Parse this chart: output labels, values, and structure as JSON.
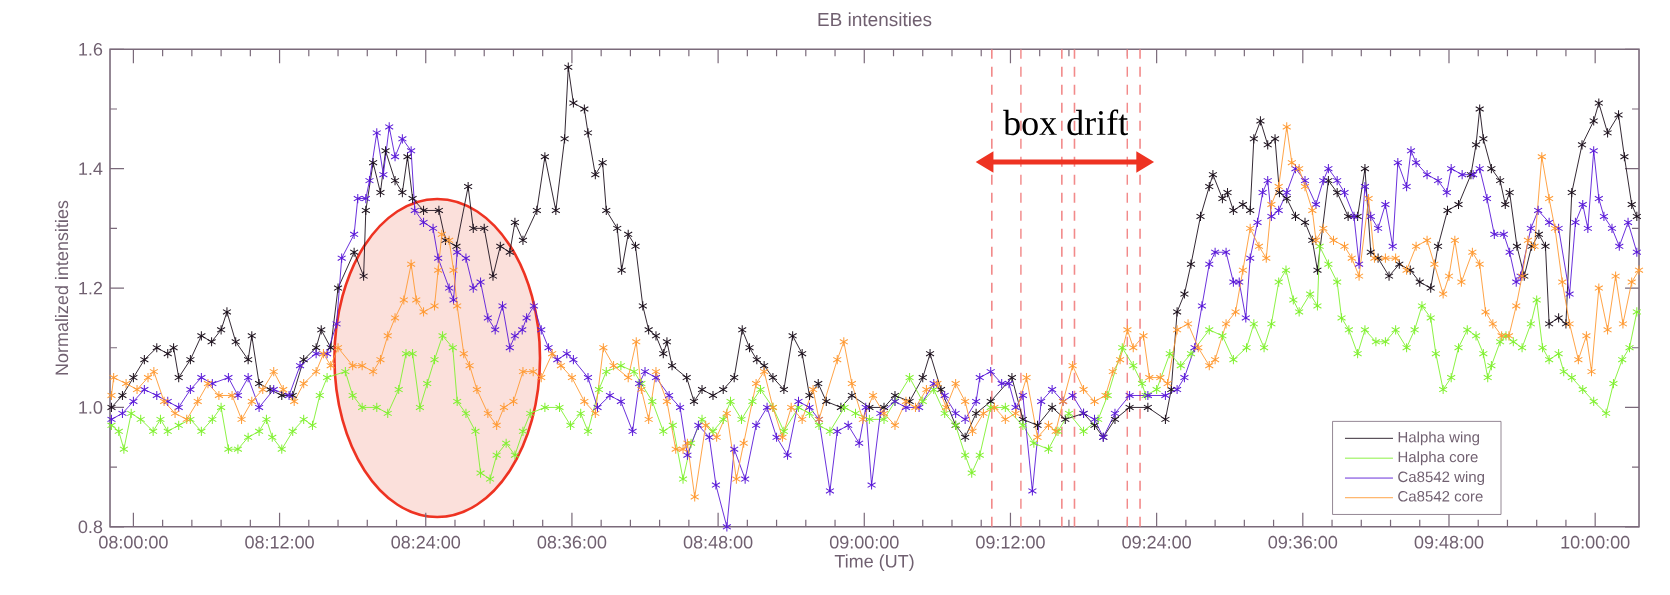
{
  "chart_data": {
    "type": "line",
    "title": "EB intensities",
    "xlabel": "Time (UT)",
    "ylabel": "Normalized intensities",
    "xlim": [
      7.968,
      10.06
    ],
    "ylim": [
      0.8,
      1.6
    ],
    "xticks": [
      {
        "value": 8.0,
        "label": "08:00:00"
      },
      {
        "value": 8.2,
        "label": "08:12:00"
      },
      {
        "value": 8.4,
        "label": "08:24:00"
      },
      {
        "value": 8.6,
        "label": "08:36:00"
      },
      {
        "value": 8.8,
        "label": "08:48:00"
      },
      {
        "value": 9.0,
        "label": "09:00:00"
      },
      {
        "value": 9.2,
        "label": "09:12:00"
      },
      {
        "value": 9.4,
        "label": "09:24:00"
      },
      {
        "value": 9.6,
        "label": "09:36:00"
      },
      {
        "value": 9.8,
        "label": "09:48:00"
      },
      {
        "value": 10.0,
        "label": "10:00:00"
      }
    ],
    "yticks": [
      {
        "value": 0.8,
        "label": "0.8"
      },
      {
        "value": 1.0,
        "label": "1.0"
      },
      {
        "value": 1.2,
        "label": "1.2"
      },
      {
        "value": 1.4,
        "label": "1.4"
      },
      {
        "value": 1.6,
        "label": "1.6"
      }
    ],
    "legend": "bottom right",
    "marker": "cross",
    "line_style": "solid",
    "annotations": [
      "box drift"
    ],
    "ref_lines": [
      {
        "axis": "x",
        "value": 9.1745,
        "color": "#f28a8a",
        "line_style": "dashed"
      },
      {
        "axis": "x",
        "value": 9.2144,
        "color": "#f28a8a",
        "line_style": "dashed"
      },
      {
        "axis": "x",
        "value": 9.2703,
        "color": "#f28a8a",
        "line_style": "dashed"
      },
      {
        "axis": "x",
        "value": 9.2876,
        "color": "#f28a8a",
        "line_style": "dashed"
      },
      {
        "axis": "x",
        "value": 9.3598,
        "color": "#f28a8a",
        "line_style": "dashed"
      },
      {
        "axis": "x",
        "value": 9.3773,
        "color": "#f28a8a",
        "line_style": "dashed"
      }
    ],
    "series": [
      {
        "name": "Halpha wing",
        "color": "#1e121e",
        "x": [
          7.97,
          7.985,
          8.0,
          8.015,
          8.032,
          8.047,
          8.055,
          8.062,
          8.078,
          8.093,
          8.107,
          8.12,
          8.128,
          8.14,
          8.157,
          8.162,
          8.172,
          8.187,
          8.203,
          8.218,
          8.233,
          8.25,
          8.257,
          8.27,
          8.28,
          8.302,
          8.315,
          8.318,
          8.328,
          8.338,
          8.345,
          8.358,
          8.368,
          8.375,
          8.382,
          8.397,
          8.418,
          8.427,
          8.442,
          8.458,
          8.465,
          8.48,
          8.492,
          8.502,
          8.515,
          8.522,
          8.533,
          8.552,
          8.563,
          8.578,
          8.59,
          8.595,
          8.602,
          8.617,
          8.622,
          8.632,
          8.642,
          8.647,
          8.662,
          8.668,
          8.677,
          8.687,
          8.697,
          8.705,
          8.715,
          8.725,
          8.73,
          8.737,
          8.757,
          8.767,
          8.778,
          8.793,
          8.807,
          8.822,
          8.833,
          8.843,
          8.853,
          8.863,
          8.875,
          8.89,
          8.902,
          8.915,
          8.925,
          8.937,
          8.948,
          8.968,
          8.983,
          9.007,
          9.027,
          9.042,
          9.062,
          9.08,
          9.09,
          9.105,
          9.125,
          9.138,
          9.153,
          9.173,
          9.202,
          9.217,
          9.237,
          9.257,
          9.275,
          9.3,
          9.315,
          9.327,
          9.343,
          9.363,
          9.388,
          9.412,
          9.42,
          9.428,
          9.438,
          9.447,
          9.46,
          9.472,
          9.477,
          9.49,
          9.497,
          9.505,
          9.518,
          9.528,
          9.533,
          9.542,
          9.552,
          9.562,
          9.568,
          9.578,
          9.59,
          9.603,
          9.613,
          9.62,
          9.635,
          9.647,
          9.662,
          9.675,
          9.685,
          9.693,
          9.703,
          9.718,
          9.732,
          9.747,
          9.76,
          9.775,
          9.785,
          9.798,
          9.813,
          9.83,
          9.837,
          9.842,
          9.847,
          9.858,
          9.87,
          9.877,
          9.883,
          9.893,
          9.903,
          9.913,
          9.923,
          9.932,
          9.937,
          9.95,
          9.96,
          9.968,
          9.982,
          9.998,
          10.005,
          10.017,
          10.032,
          10.04,
          10.05,
          10.057
        ],
        "values": [
          1.0,
          1.02,
          1.05,
          1.08,
          1.1,
          1.09,
          1.1,
          1.05,
          1.08,
          1.12,
          1.11,
          1.13,
          1.16,
          1.11,
          1.08,
          1.12,
          1.04,
          1.03,
          1.02,
          1.02,
          1.08,
          1.1,
          1.13,
          1.1,
          1.2,
          1.26,
          1.22,
          1.33,
          1.41,
          1.36,
          1.43,
          1.38,
          1.36,
          1.42,
          1.35,
          1.33,
          1.33,
          1.28,
          1.27,
          1.37,
          1.3,
          1.3,
          1.22,
          1.27,
          1.26,
          1.31,
          1.28,
          1.33,
          1.42,
          1.33,
          1.45,
          1.57,
          1.51,
          1.5,
          1.46,
          1.39,
          1.41,
          1.33,
          1.3,
          1.23,
          1.29,
          1.27,
          1.17,
          1.13,
          1.12,
          1.09,
          1.11,
          1.07,
          1.05,
          1.01,
          1.03,
          1.02,
          1.03,
          1.05,
          1.13,
          1.1,
          1.08,
          1.07,
          1.05,
          1.03,
          1.12,
          1.09,
          1.02,
          1.04,
          1.01,
          1.0,
          1.02,
          1.0,
          1.0,
          1.02,
          1.01,
          1.05,
          1.09,
          1.03,
          0.97,
          0.95,
          0.99,
          1.01,
          1.05,
          0.98,
          0.97,
          1.0,
          0.98,
          0.99,
          0.97,
          0.95,
          0.98,
          1.0,
          1.0,
          0.98,
          1.03,
          1.16,
          1.19,
          1.24,
          1.32,
          1.37,
          1.39,
          1.35,
          1.36,
          1.33,
          1.34,
          1.33,
          1.45,
          1.48,
          1.44,
          1.45,
          1.36,
          1.35,
          1.32,
          1.31,
          1.28,
          1.23,
          1.38,
          1.36,
          1.32,
          1.32,
          1.4,
          1.26,
          1.25,
          1.22,
          1.24,
          1.23,
          1.21,
          1.2,
          1.27,
          1.33,
          1.34,
          1.39,
          1.44,
          1.5,
          1.45,
          1.4,
          1.38,
          1.34,
          1.36,
          1.27,
          1.22,
          1.27,
          1.29,
          1.27,
          1.14,
          1.15,
          1.14,
          1.36,
          1.44,
          1.48,
          1.51,
          1.46,
          1.49,
          1.42,
          1.34,
          1.32
        ]
      },
      {
        "name": "Halpha core",
        "color": "#80f030",
        "x": [
          7.97,
          7.98,
          7.987,
          7.997,
          8.01,
          8.027,
          8.037,
          8.047,
          8.062,
          8.078,
          8.093,
          8.108,
          8.12,
          8.13,
          8.143,
          8.157,
          8.172,
          8.182,
          8.19,
          8.203,
          8.218,
          8.233,
          8.245,
          8.255,
          8.265,
          8.29,
          8.3,
          8.313,
          8.333,
          8.348,
          8.363,
          8.373,
          8.382,
          8.392,
          8.402,
          8.412,
          8.423,
          8.437,
          8.443,
          8.455,
          8.468,
          8.475,
          8.488,
          8.497,
          8.51,
          8.522,
          8.533,
          8.543,
          8.563,
          8.583,
          8.598,
          8.612,
          8.622,
          8.637,
          8.647,
          8.667,
          8.685,
          8.695,
          8.71,
          8.725,
          8.738,
          8.752,
          8.763,
          8.778,
          8.793,
          8.807,
          8.817,
          8.832,
          8.847,
          8.858,
          8.875,
          8.89,
          8.91,
          8.925,
          8.938,
          8.953,
          8.973,
          8.988,
          9.007,
          9.027,
          9.042,
          9.062,
          9.08,
          9.095,
          9.11,
          9.125,
          9.138,
          9.147,
          9.158,
          9.173,
          9.193,
          9.217,
          9.232,
          9.252,
          9.265,
          9.28,
          9.3,
          9.32,
          9.333,
          9.353,
          9.368,
          9.38,
          9.385,
          9.4,
          9.418,
          9.433,
          9.447,
          9.472,
          9.49,
          9.505,
          9.523,
          9.533,
          9.547,
          9.557,
          9.567,
          9.577,
          9.587,
          9.595,
          9.61,
          9.62,
          9.623,
          9.635,
          9.647,
          9.653,
          9.663,
          9.675,
          9.685,
          9.7,
          9.713,
          9.727,
          9.742,
          9.753,
          9.763,
          9.775,
          9.782,
          9.792,
          9.803,
          9.813,
          9.825,
          9.837,
          9.847,
          9.853,
          9.858,
          9.87,
          9.878,
          9.888,
          9.9,
          9.912,
          9.92,
          9.928,
          9.937,
          9.95,
          9.957,
          9.968,
          9.983,
          9.998,
          10.015,
          10.025,
          10.037,
          10.047,
          10.057
        ],
        "values": [
          0.97,
          0.96,
          0.93,
          0.99,
          0.98,
          0.96,
          0.98,
          0.96,
          0.97,
          0.98,
          0.96,
          0.98,
          1.0,
          0.93,
          0.93,
          0.95,
          0.96,
          0.98,
          0.95,
          0.93,
          0.96,
          0.98,
          0.97,
          1.02,
          1.05,
          1.06,
          1.02,
          1.0,
          1.0,
          0.99,
          1.03,
          1.09,
          1.09,
          1.0,
          1.04,
          1.08,
          1.12,
          1.1,
          1.01,
          0.99,
          0.96,
          0.89,
          0.88,
          0.92,
          0.94,
          0.92,
          0.96,
          0.99,
          1.0,
          1.0,
          0.97,
          0.99,
          0.96,
          1.03,
          1.06,
          1.07,
          1.06,
          1.04,
          1.01,
          0.96,
          0.97,
          0.88,
          0.94,
          0.98,
          0.96,
          0.98,
          1.01,
          0.98,
          1.01,
          1.03,
          1.0,
          0.96,
          1.0,
          0.99,
          0.97,
          0.96,
          1.0,
          0.99,
          0.98,
          0.98,
          1.01,
          1.05,
          1.01,
          1.03,
          0.99,
          0.97,
          0.92,
          0.89,
          0.92,
          1.0,
          1.0,
          0.97,
          0.94,
          0.93,
          0.96,
          0.99,
          0.96,
          0.98,
          1.02,
          1.1,
          1.07,
          1.04,
          1.02,
          1.03,
          1.09,
          1.07,
          1.09,
          1.13,
          1.12,
          1.08,
          1.1,
          1.14,
          1.1,
          1.14,
          1.21,
          1.23,
          1.18,
          1.16,
          1.19,
          1.17,
          1.27,
          1.24,
          1.21,
          1.15,
          1.13,
          1.09,
          1.13,
          1.11,
          1.11,
          1.13,
          1.1,
          1.13,
          1.17,
          1.15,
          1.09,
          1.03,
          1.05,
          1.1,
          1.13,
          1.12,
          1.09,
          1.05,
          1.07,
          1.11,
          1.12,
          1.11,
          1.1,
          1.14,
          1.18,
          1.1,
          1.08,
          1.09,
          1.06,
          1.05,
          1.03,
          1.01,
          0.99,
          1.04,
          1.08,
          1.1,
          1.16
        ]
      },
      {
        "name": "Ca8542 wing",
        "color": "#5a1ad8",
        "x": [
          7.97,
          7.985,
          8.0,
          8.015,
          8.032,
          8.047,
          8.062,
          8.078,
          8.093,
          8.108,
          8.13,
          8.143,
          8.157,
          8.172,
          8.192,
          8.213,
          8.228,
          8.25,
          8.265,
          8.278,
          8.285,
          8.302,
          8.307,
          8.318,
          8.323,
          8.333,
          8.342,
          8.35,
          8.358,
          8.368,
          8.38,
          8.385,
          8.397,
          8.41,
          8.417,
          8.432,
          8.438,
          8.443,
          8.455,
          8.465,
          8.475,
          8.485,
          8.495,
          8.505,
          8.515,
          8.522,
          8.532,
          8.538,
          8.548,
          8.558,
          8.568,
          8.58,
          8.593,
          8.602,
          8.622,
          8.635,
          8.652,
          8.667,
          8.683,
          8.692,
          8.7,
          8.715,
          8.733,
          8.748,
          8.758,
          8.773,
          8.788,
          8.797,
          8.812,
          8.822,
          8.837,
          8.852,
          8.867,
          8.88,
          8.895,
          8.91,
          8.925,
          8.938,
          8.953,
          8.963,
          8.978,
          8.993,
          9.002,
          9.01,
          9.022,
          9.042,
          9.057,
          9.075,
          9.095,
          9.11,
          9.125,
          9.138,
          9.153,
          9.158,
          9.173,
          9.188,
          9.198,
          9.207,
          9.217,
          9.23,
          9.242,
          9.257,
          9.272,
          9.285,
          9.3,
          9.315,
          9.327,
          9.343,
          9.363,
          9.388,
          9.412,
          9.428,
          9.438,
          9.452,
          9.462,
          9.472,
          9.48,
          9.495,
          9.505,
          9.513,
          9.522,
          9.528,
          9.538,
          9.545,
          9.552,
          9.557,
          9.567,
          9.578,
          9.59,
          9.603,
          9.618,
          9.628,
          9.635,
          9.647,
          9.657,
          9.67,
          9.677,
          9.685,
          9.693,
          9.703,
          9.713,
          9.723,
          9.73,
          9.742,
          9.748,
          9.755,
          9.77,
          9.785,
          9.797,
          9.803,
          9.818,
          9.833,
          9.842,
          9.852,
          9.862,
          9.875,
          9.883,
          9.892,
          9.898,
          9.912,
          9.922,
          9.937,
          9.95,
          9.965,
          9.973,
          9.983,
          9.99,
          9.998,
          10.005,
          10.012,
          10.023,
          10.033,
          10.045,
          10.057
        ],
        "values": [
          0.98,
          0.99,
          1.01,
          1.03,
          1.02,
          1.01,
          1.0,
          1.03,
          1.05,
          1.04,
          1.05,
          1.02,
          1.05,
          1.0,
          1.03,
          1.02,
          1.07,
          1.09,
          1.09,
          1.14,
          1.25,
          1.29,
          1.35,
          1.35,
          1.38,
          1.46,
          1.39,
          1.47,
          1.42,
          1.45,
          1.43,
          1.33,
          1.31,
          1.3,
          1.25,
          1.2,
          1.18,
          1.26,
          1.25,
          1.2,
          1.21,
          1.15,
          1.13,
          1.17,
          1.1,
          1.12,
          1.13,
          1.15,
          1.17,
          1.13,
          1.1,
          1.08,
          1.09,
          1.08,
          1.05,
          1.0,
          1.02,
          1.01,
          0.96,
          1.04,
          1.06,
          1.05,
          1.02,
          1.0,
          0.92,
          0.97,
          0.95,
          0.87,
          0.8,
          0.93,
          0.88,
          0.97,
          1.0,
          0.95,
          0.92,
          1.01,
          1.0,
          0.98,
          0.86,
          0.96,
          0.97,
          0.94,
          1.0,
          0.87,
          0.99,
          1.01,
          1.0,
          1.0,
          1.04,
          1.02,
          0.99,
          0.98,
          1.01,
          1.05,
          1.06,
          1.04,
          1.04,
          1.0,
          1.02,
          0.86,
          1.01,
          1.03,
          1.01,
          1.02,
          0.99,
          0.98,
          0.95,
          0.99,
          1.02,
          1.02,
          1.02,
          1.03,
          1.05,
          1.1,
          1.17,
          1.24,
          1.26,
          1.26,
          1.21,
          1.21,
          1.15,
          1.25,
          1.31,
          1.36,
          1.38,
          1.32,
          1.33,
          1.36,
          1.4,
          1.38,
          1.34,
          1.38,
          1.4,
          1.38,
          1.36,
          1.32,
          1.24,
          1.37,
          1.32,
          1.3,
          1.34,
          1.27,
          1.41,
          1.37,
          1.43,
          1.41,
          1.39,
          1.38,
          1.36,
          1.4,
          1.39,
          1.39,
          1.4,
          1.35,
          1.29,
          1.29,
          1.26,
          1.21,
          1.22,
          1.3,
          1.33,
          1.31,
          1.3,
          1.19,
          1.31,
          1.34,
          1.3,
          1.43,
          1.35,
          1.32,
          1.3,
          1.27,
          1.31,
          1.26
        ]
      },
      {
        "name": "Ca8542 core",
        "color": "#ff9a33",
        "x": [
          7.97,
          7.973,
          7.99,
          8.005,
          8.02,
          8.028,
          8.042,
          8.057,
          8.073,
          8.088,
          8.102,
          8.117,
          8.135,
          8.148,
          8.162,
          8.177,
          8.192,
          8.205,
          8.22,
          8.233,
          8.25,
          8.26,
          8.27,
          8.28,
          8.3,
          8.313,
          8.328,
          8.338,
          8.348,
          8.358,
          8.37,
          8.38,
          8.387,
          8.397,
          8.412,
          8.417,
          8.422,
          8.432,
          8.438,
          8.443,
          8.452,
          8.46,
          8.47,
          8.485,
          8.497,
          8.507,
          8.52,
          8.533,
          8.547,
          8.558,
          8.573,
          8.585,
          8.6,
          8.617,
          8.632,
          8.643,
          8.657,
          8.677,
          8.688,
          8.695,
          8.705,
          8.715,
          8.73,
          8.742,
          8.752,
          8.758,
          8.768,
          8.783,
          8.798,
          8.812,
          8.825,
          8.835,
          8.852,
          8.863,
          8.875,
          8.888,
          8.9,
          8.915,
          8.93,
          8.938,
          8.963,
          8.972,
          8.983,
          8.998,
          9.012,
          9.027,
          9.042,
          9.057,
          9.07,
          9.085,
          9.1,
          9.112,
          9.125,
          9.138,
          9.148,
          9.163,
          9.178,
          9.193,
          9.207,
          9.222,
          9.237,
          9.252,
          9.262,
          9.272,
          9.285,
          9.3,
          9.315,
          9.33,
          9.34,
          9.35,
          9.36,
          9.368,
          9.382,
          9.39,
          9.405,
          9.415,
          9.428,
          9.443,
          9.457,
          9.472,
          9.48,
          9.495,
          9.508,
          9.518,
          9.528,
          9.54,
          9.55,
          9.557,
          9.567,
          9.578,
          9.585,
          9.595,
          9.603,
          9.613,
          9.618,
          9.628,
          9.642,
          9.657,
          9.667,
          9.677,
          9.69,
          9.698,
          9.713,
          9.727,
          9.742,
          9.755,
          9.77,
          9.78,
          9.792,
          9.8,
          9.808,
          9.817,
          9.832,
          9.842,
          9.85,
          9.86,
          9.872,
          9.882,
          9.892,
          9.9,
          9.908,
          9.917,
          9.927,
          9.937,
          9.945,
          9.955,
          9.965,
          9.977,
          9.988,
          9.995,
          10.005,
          10.017,
          10.028,
          10.038,
          10.05,
          10.06
        ],
        "values": [
          1.02,
          1.05,
          1.04,
          1.03,
          1.05,
          1.06,
          1.01,
          0.99,
          0.98,
          1.01,
          1.04,
          1.02,
          1.02,
          0.98,
          1.01,
          1.03,
          1.06,
          1.03,
          1.01,
          1.04,
          1.06,
          1.09,
          1.07,
          1.1,
          1.07,
          1.07,
          1.06,
          1.08,
          1.12,
          1.15,
          1.18,
          1.24,
          1.18,
          1.16,
          1.17,
          1.23,
          1.29,
          1.28,
          1.23,
          1.17,
          1.09,
          1.07,
          1.03,
          0.99,
          0.97,
          1.0,
          1.01,
          1.06,
          1.06,
          1.05,
          1.09,
          1.07,
          1.05,
          1.01,
          0.99,
          1.1,
          1.07,
          1.05,
          1.11,
          1.03,
          0.98,
          1.06,
          1.01,
          0.93,
          0.93,
          0.94,
          0.85,
          0.97,
          0.95,
          0.99,
          0.88,
          0.94,
          1.04,
          1.06,
          1.0,
          0.95,
          1.0,
          0.98,
          1.03,
          0.98,
          1.08,
          1.11,
          1.04,
          0.98,
          1.02,
          0.99,
          0.97,
          1.01,
          1.0,
          1.03,
          1.04,
          1.0,
          1.04,
          1.01,
          0.96,
          0.99,
          1.0,
          0.98,
          0.99,
          1.05,
          0.95,
          0.97,
          0.96,
          1.01,
          1.07,
          1.03,
          1.01,
          1.02,
          1.06,
          1.08,
          1.13,
          1.1,
          1.12,
          1.05,
          1.05,
          1.04,
          1.13,
          1.14,
          1.1,
          1.07,
          1.08,
          1.14,
          1.16,
          1.23,
          1.3,
          1.27,
          1.25,
          1.34,
          1.37,
          1.47,
          1.41,
          1.4,
          1.37,
          1.33,
          1.28,
          1.3,
          1.28,
          1.27,
          1.25,
          1.22,
          1.35,
          1.25,
          1.25,
          1.25,
          1.23,
          1.27,
          1.28,
          1.24,
          1.19,
          1.22,
          1.28,
          1.21,
          1.26,
          1.24,
          1.16,
          1.14,
          1.12,
          1.12,
          1.17,
          1.22,
          1.28,
          1.27,
          1.42,
          1.35,
          1.3,
          1.21,
          1.14,
          1.08,
          1.12,
          1.06,
          1.2,
          1.13,
          1.22,
          1.14,
          1.21,
          1.23
        ]
      }
    ]
  }
}
